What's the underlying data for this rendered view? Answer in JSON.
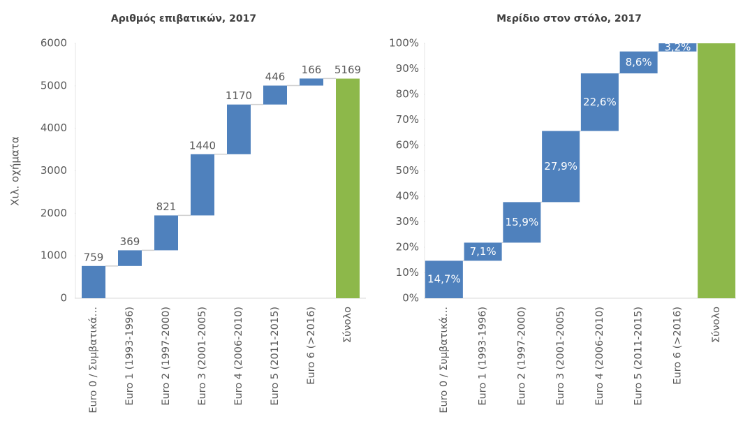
{
  "chart_data": [
    {
      "type": "waterfall",
      "title": "Αριθμός επιβατικών, 2017",
      "ylabel": "Χιλ. οχήματα",
      "categories": [
        "Euro 0 / Συμβατικά…",
        "Euro 1 (1993-1996)",
        "Euro 2 (1997-2000)",
        "Euro 3 (2001-2005)",
        "Euro 4 (2006-2010)",
        "Euro 5 (2011-2015)",
        "Euro 6 (>2016)",
        "Σύνολο"
      ],
      "values": [
        759,
        369,
        821,
        1440,
        1170,
        446,
        166,
        5169
      ],
      "total": [
        false,
        false,
        false,
        false,
        false,
        false,
        false,
        true
      ],
      "color": "#4f81bd",
      "total_color": "#8db84a",
      "label_position": "outside",
      "ylim": [
        0,
        6000
      ],
      "yticks": [
        0,
        1000,
        2000,
        3000,
        4000,
        5000,
        6000
      ]
    },
    {
      "type": "waterfall",
      "title": "Μερίδιο στον στόλο, 2017",
      "categories": [
        "Euro 0 / Συμβατικά…",
        "Euro 1 (1993-1996)",
        "Euro 2 (1997-2000)",
        "Euro 3 (2001-2005)",
        "Euro 4 (2006-2010)",
        "Euro 5 (2011-2015)",
        "Euro 6 (>2016)",
        "Σύνολο"
      ],
      "values": [
        14.7,
        7.1,
        15.9,
        27.9,
        22.6,
        8.6,
        3.2,
        100
      ],
      "value_labels": [
        "14,7%",
        "7,1%",
        "15,9%",
        "27,9%",
        "22,6%",
        "8,6%",
        "3,2%",
        null
      ],
      "total": [
        false,
        false,
        false,
        false,
        false,
        false,
        false,
        true
      ],
      "color": "#4f81bd",
      "total_color": "#8db84a",
      "label_position": "inside",
      "ylim": [
        0,
        100
      ],
      "yticks": [
        {
          "value": 0,
          "label": "0%"
        },
        {
          "value": 10,
          "label": "10%"
        },
        {
          "value": 20,
          "label": "20%"
        },
        {
          "value": 30,
          "label": "30%"
        },
        {
          "value": 40,
          "label": "40%"
        },
        {
          "value": 50,
          "label": "50%"
        },
        {
          "value": 60,
          "label": "60%"
        },
        {
          "value": 70,
          "label": "70%"
        },
        {
          "value": 80,
          "label": "80%"
        },
        {
          "value": 90,
          "label": "90%"
        },
        {
          "value": 100,
          "label": "100%"
        }
      ]
    }
  ]
}
